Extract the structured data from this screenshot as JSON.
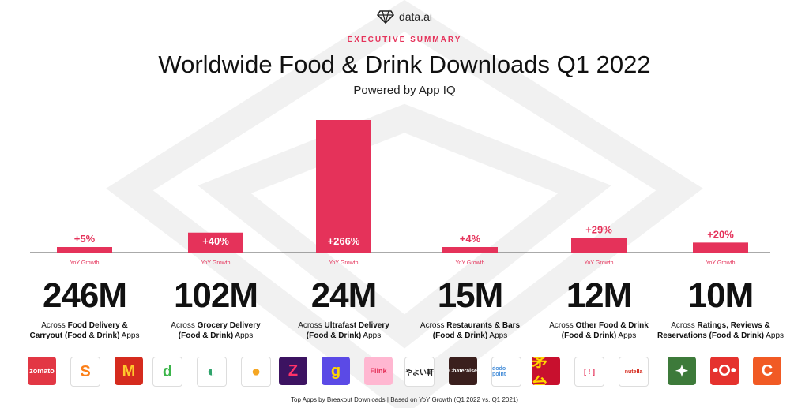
{
  "brand": {
    "name": "data.ai"
  },
  "header": {
    "kicker": "EXECUTIVE SUMMARY",
    "title": "Worldwide Food & Drink Downloads Q1 2022",
    "subtitle": "Powered by App IQ"
  },
  "colors": {
    "accent": "#e5325a",
    "bar": "#e5325a",
    "baseline": "#555555"
  },
  "chart_data": {
    "type": "bar",
    "categories": [
      "Food Delivery & Carryout (Food & Drink)",
      "Grocery Delivery (Food & Drink)",
      "Ultrafast Delivery (Food & Drink)",
      "Restaurants & Bars (Food & Drink)",
      "Other Food & Drink (Food & Drink)",
      "Ratings, Reviews & Reservations (Food & Drink)"
    ],
    "values": [
      5,
      40,
      266,
      4,
      29,
      20
    ],
    "data_labels": [
      "+5%",
      "+40%",
      "+266%",
      "+4%",
      "+29%",
      "+20%"
    ],
    "sublabel": "YoY Growth",
    "ylim": [
      0,
      266
    ]
  },
  "columns": [
    {
      "downloads": "246M",
      "pre": "Across ",
      "bold": "Food Delivery & Carryout (Food & Drink)",
      "post": " Apps",
      "line1": "Food Delivery &",
      "line2": "Carryout (Food & Drink)"
    },
    {
      "downloads": "102M",
      "pre": "Across ",
      "bold": "Grocery Delivery (Food & Drink)",
      "post": " Apps",
      "line1": "Grocery Delivery",
      "line2": "(Food & Drink)"
    },
    {
      "downloads": "24M",
      "pre": "Across ",
      "bold": "Ultrafast Delivery (Food & Drink)",
      "post": " Apps",
      "line1": "Ultrafast Delivery",
      "line2": "(Food & Drink)"
    },
    {
      "downloads": "15M",
      "pre": "Across ",
      "bold": "Restaurants & Bars (Food & Drink)",
      "post": " Apps",
      "line1": "Restaurants & Bars",
      "line2": "(Food & Drink)"
    },
    {
      "downloads": "12M",
      "pre": "Across ",
      "bold": "Other Food & Drink (Food & Drink)",
      "post": " Apps",
      "line1": "Other Food & Drink",
      "line2": "(Food & Drink)"
    },
    {
      "downloads": "10M",
      "pre": "Across ",
      "bold": "Ratings, Reviews & Reservations (Food & Drink)",
      "post": " Apps",
      "line1": "Ratings, Reviews &",
      "line2": "Reservations (Food & Drink)"
    }
  ],
  "apps": [
    [
      {
        "icon": "zomato-icon",
        "label": "zomato",
        "bg": "#e23744",
        "fg": "#ffffff"
      },
      {
        "icon": "swiggy-icon",
        "label": "S",
        "bg": "#ffffff",
        "fg": "#fc8019"
      },
      {
        "icon": "mcdonalds-icon",
        "label": "M",
        "bg": "#d52b1e",
        "fg": "#ffc72c"
      }
    ],
    [
      {
        "icon": "grocery-app-icon",
        "label": "d",
        "bg": "#ffffff",
        "fg": "#3bb54a"
      },
      {
        "icon": "fresh-apple-icon",
        "label": "◐",
        "bg": "#ffffff",
        "fg": "#2fa36b"
      },
      {
        "icon": "orange-fruit-icon",
        "label": "●",
        "bg": "#ffffff",
        "fg": "#f5a623"
      }
    ],
    [
      {
        "icon": "zepto-icon",
        "label": "Z",
        "bg": "#3c1361",
        "fg": "#ff3269"
      },
      {
        "icon": "gopuff-icon",
        "label": "g",
        "bg": "#5b4ae6",
        "fg": "#ffd400"
      },
      {
        "icon": "flink-icon",
        "label": "Flink",
        "bg": "#ffb7d1",
        "fg": "#e5325a"
      }
    ],
    [
      {
        "icon": "yayoiken-icon",
        "label": "やよい軒",
        "bg": "#ffffff",
        "fg": "#222222"
      },
      {
        "icon": "chateraise-icon",
        "label": "Chateraisé",
        "bg": "#3a1f1d",
        "fg": "#ffffff"
      },
      {
        "icon": "dodo-point-icon",
        "label": "dodo point",
        "bg": "#ffffff",
        "fg": "#4a90d9"
      }
    ],
    [
      {
        "icon": "moutai-icon",
        "label": "茅台",
        "bg": "#c8102e",
        "fg": "#ffd700"
      },
      {
        "icon": "scanner-app-icon",
        "label": "[ ! ]",
        "bg": "#ffffff",
        "fg": "#e5325a"
      },
      {
        "icon": "nutella-icon",
        "label": "nutella",
        "bg": "#ffffff",
        "fg": "#d52b1e"
      }
    ],
    [
      {
        "icon": "fork-leaf-icon",
        "label": "✦",
        "bg": "#3d7a3a",
        "fg": "#ffffff"
      },
      {
        "icon": "reservation-app-icon",
        "label": "•O•",
        "bg": "#e5322e",
        "fg": "#ffffff"
      },
      {
        "icon": "c-app-icon",
        "label": "C",
        "bg": "#f15a24",
        "fg": "#ffffff"
      }
    ]
  ],
  "footer": "Top Apps by Breakout Downloads | Based on YoY Growth (Q1 2022 vs. Q1 2021)"
}
